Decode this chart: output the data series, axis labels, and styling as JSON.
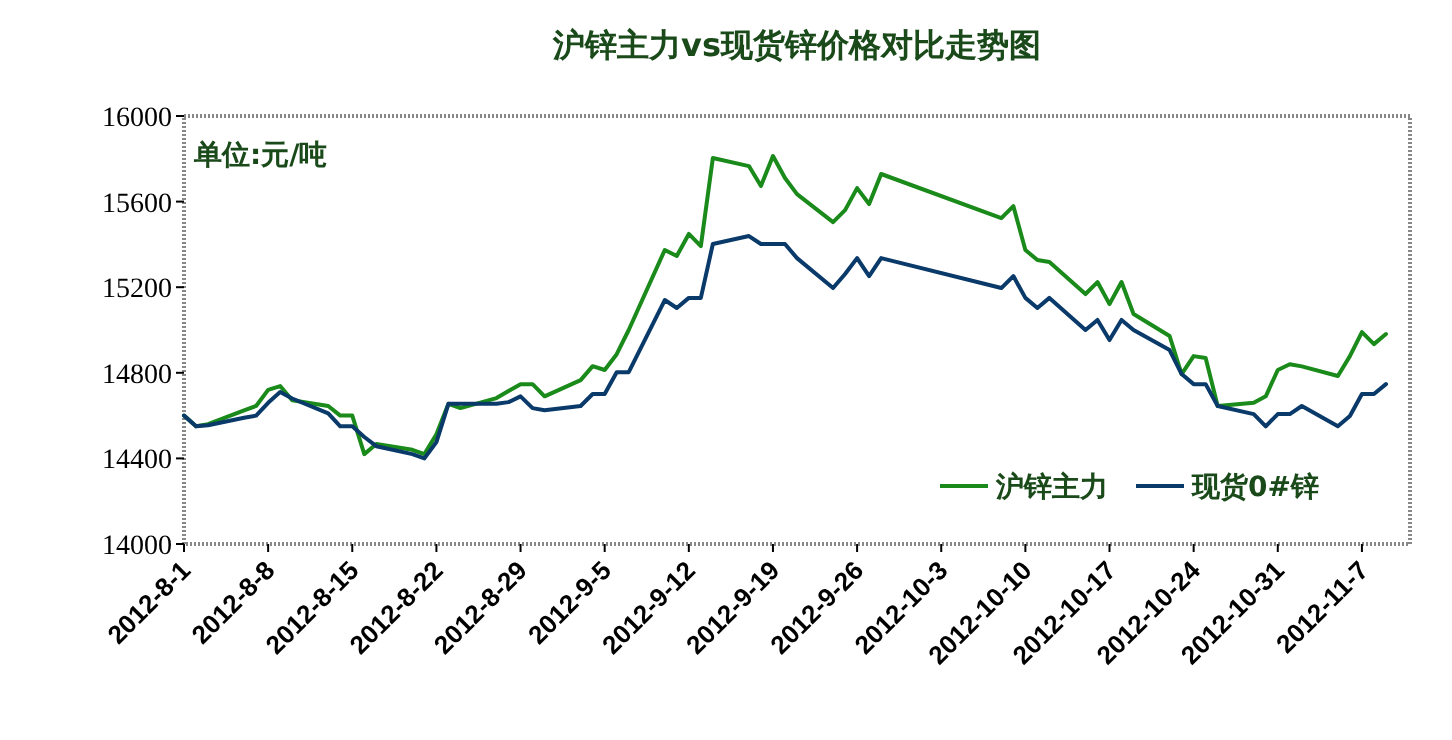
{
  "chart_data": {
    "type": "line",
    "title": "沪锌主力vs现货锌价格对比走势图",
    "annotations": [
      "单位:元/吨"
    ],
    "x": [
      "2012-08-01",
      "2012-08-02",
      "2012-08-03",
      "2012-08-06",
      "2012-08-07",
      "2012-08-08",
      "2012-08-09",
      "2012-08-10",
      "2012-08-13",
      "2012-08-14",
      "2012-08-15",
      "2012-08-16",
      "2012-08-17",
      "2012-08-20",
      "2012-08-21",
      "2012-08-22",
      "2012-08-23",
      "2012-08-24",
      "2012-08-27",
      "2012-08-28",
      "2012-08-29",
      "2012-08-30",
      "2012-08-31",
      "2012-09-03",
      "2012-09-04",
      "2012-09-05",
      "2012-09-06",
      "2012-09-07",
      "2012-09-10",
      "2012-09-11",
      "2012-09-12",
      "2012-09-13",
      "2012-09-14",
      "2012-09-17",
      "2012-09-18",
      "2012-09-19",
      "2012-09-20",
      "2012-09-21",
      "2012-09-24",
      "2012-09-25",
      "2012-09-26",
      "2012-09-27",
      "2012-09-28",
      "2012-10-08",
      "2012-10-09",
      "2012-10-10",
      "2012-10-11",
      "2012-10-12",
      "2012-10-15",
      "2012-10-16",
      "2012-10-17",
      "2012-10-18",
      "2012-10-19",
      "2012-10-22",
      "2012-10-23",
      "2012-10-24",
      "2012-10-25",
      "2012-10-26",
      "2012-10-29",
      "2012-10-30",
      "2012-10-31",
      "2012-11-01",
      "2012-11-02",
      "2012-11-05",
      "2012-11-06",
      "2012-11-07",
      "2012-11-08",
      "2012-11-09"
    ],
    "series": [
      {
        "name": "沪锌主力",
        "color": "#1a8a1a",
        "values": [
          14600,
          14550,
          14560,
          14625,
          14645,
          14720,
          14738,
          14672,
          14645,
          14600,
          14600,
          14420,
          14467,
          14440,
          14420,
          14513,
          14655,
          14635,
          14682,
          14715,
          14747,
          14747,
          14690,
          14766,
          14831,
          14813,
          14887,
          15000,
          15374,
          15346,
          15449,
          15392,
          15804,
          15766,
          15673,
          15813,
          15710,
          15635,
          15504,
          15560,
          15663,
          15589,
          15729,
          15523,
          15579,
          15374,
          15327,
          15318,
          15168,
          15224,
          15121,
          15224,
          15075,
          14972,
          14794,
          14878,
          14869,
          14645,
          14660,
          14690,
          14813,
          14840,
          14830,
          14785,
          14878,
          14990,
          14934,
          14981
        ]
      },
      {
        "name": "现货0#锌",
        "color": "#0a3a6a",
        "values": [
          14600,
          14550,
          14555,
          14590,
          14600,
          14660,
          14710,
          14680,
          14610,
          14550,
          14550,
          14500,
          14457,
          14420,
          14400,
          14476,
          14655,
          14655,
          14655,
          14663,
          14690,
          14635,
          14625,
          14645,
          14701,
          14701,
          14803,
          14803,
          15140,
          15103,
          15150,
          15150,
          15402,
          15439,
          15402,
          15402,
          15402,
          15336,
          15196,
          15262,
          15336,
          15252,
          15336,
          15196,
          15252,
          15150,
          15103,
          15150,
          15000,
          15047,
          14953,
          15047,
          15000,
          14906,
          14794,
          14747,
          14747,
          14645,
          14607,
          14550,
          14607,
          14607,
          14645,
          14550,
          14598,
          14701,
          14701,
          14747
        ]
      }
    ],
    "xlim": [
      "2012-08-01",
      "2012-11-11"
    ],
    "xticks": [
      {
        "value": "2012-08-01",
        "label": "2012-8-1"
      },
      {
        "value": "2012-08-08",
        "label": "2012-8-8"
      },
      {
        "value": "2012-08-15",
        "label": "2012-8-15"
      },
      {
        "value": "2012-08-22",
        "label": "2012-8-22"
      },
      {
        "value": "2012-08-29",
        "label": "2012-8-29"
      },
      {
        "value": "2012-09-05",
        "label": "2012-9-5"
      },
      {
        "value": "2012-09-12",
        "label": "2012-9-12"
      },
      {
        "value": "2012-09-19",
        "label": "2012-9-19"
      },
      {
        "value": "2012-09-26",
        "label": "2012-9-26"
      },
      {
        "value": "2012-10-03",
        "label": "2012-10-3"
      },
      {
        "value": "2012-10-10",
        "label": "2012-10-10"
      },
      {
        "value": "2012-10-17",
        "label": "2012-10-17"
      },
      {
        "value": "2012-10-24",
        "label": "2012-10-24"
      },
      {
        "value": "2012-10-31",
        "label": "2012-10-31"
      },
      {
        "value": "2012-11-07",
        "label": "2012-11-7"
      }
    ],
    "ylim": [
      14000,
      16000
    ],
    "yticks": [
      14000,
      14400,
      14800,
      15200,
      15600,
      16000
    ],
    "legend": "bottom right"
  }
}
